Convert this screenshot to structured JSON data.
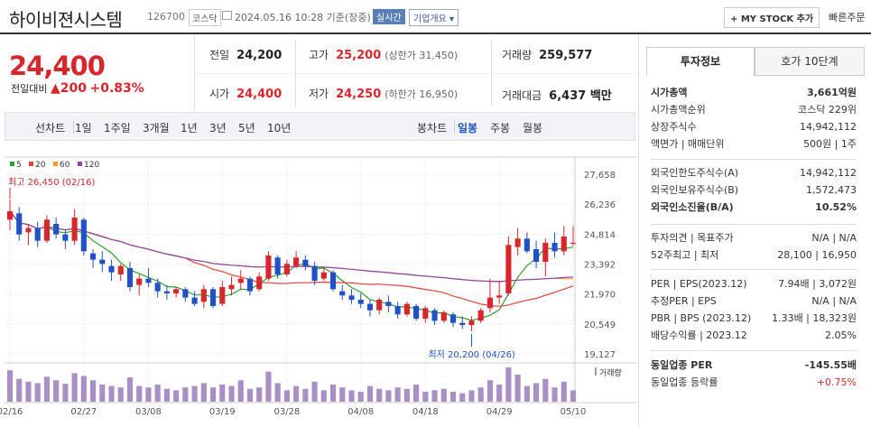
{
  "header": {
    "name": "하이비젼시스템",
    "code": "126700",
    "market": "코스닥",
    "datetime": "2024.05.16 10:28 기준(장중)",
    "live": "실시간",
    "company_info": "기업개요",
    "mystock": "+ MY STOCK 추가",
    "quick_order": "빠른주문"
  },
  "quote": {
    "price": "24,400",
    "change_label": "전일대비",
    "change_value": "▲200",
    "change_pct": "+0.83%",
    "prev_close_label": "전일",
    "prev_close": "24,200",
    "high_label": "고가",
    "high": "25,200",
    "upper_limit": "(상한가 31,450)",
    "volume_label": "거래량",
    "volume": "259,577",
    "open_label": "시가",
    "open": "24,400",
    "low_label": "저가",
    "low": "24,250",
    "lower_limit": "(하한가 16,950)",
    "trade_value_label": "거래대금",
    "trade_value": "6,437 백만"
  },
  "tabs": {
    "line": "선차트",
    "d1": "1일",
    "w1": "1주일",
    "m3": "3개월",
    "y1": "1년",
    "y3": "3년",
    "y5": "5년",
    "y10": "10년",
    "candle": "봉차트",
    "daily": "일봉",
    "weekly": "주봉",
    "monthly": "월봉"
  },
  "chart_data": {
    "type": "candlestick",
    "legend": [
      {
        "name": "5",
        "color": "#2ca02c"
      },
      {
        "name": "20",
        "color": "#e8413a"
      },
      {
        "name": "60",
        "color": "#f29c26"
      },
      {
        "name": "120",
        "color": "#8e44ad"
      }
    ],
    "y_ticks": [
      "27,658",
      "26,236",
      "24,814",
      "23,392",
      "21,970",
      "20,549",
      "19,127"
    ],
    "ylim": [
      19127,
      27658
    ],
    "x_ticks": [
      "02/16",
      "02/27",
      "03/08",
      "03/19",
      "03/28",
      "04/08",
      "04/18",
      "04/29",
      "05/10"
    ],
    "max_label": "최고 26,450 (02/16)",
    "min_label": "최저 20,200 (04/26)",
    "volume_label": "거래량",
    "candles": [
      [
        25500,
        26450,
        25000,
        25900
      ],
      [
        25800,
        26100,
        24500,
        24800
      ],
      [
        24900,
        25300,
        24300,
        25100
      ],
      [
        25100,
        25400,
        24200,
        24500
      ],
      [
        24500,
        25700,
        24400,
        25500
      ],
      [
        25300,
        25600,
        24600,
        24800
      ],
      [
        24800,
        25000,
        24100,
        24500
      ],
      [
        24500,
        26000,
        24300,
        25600
      ],
      [
        25500,
        25600,
        23800,
        24000
      ],
      [
        23900,
        24100,
        23200,
        23600
      ],
      [
        23600,
        24000,
        23000,
        23400
      ],
      [
        23300,
        23600,
        22600,
        23000
      ],
      [
        22900,
        23400,
        22600,
        23300
      ],
      [
        23200,
        23500,
        22100,
        22300
      ],
      [
        22400,
        22900,
        21900,
        22700
      ],
      [
        22700,
        23200,
        22300,
        22500
      ],
      [
        22500,
        22700,
        21800,
        22100
      ],
      [
        22100,
        22400,
        21700,
        22000
      ],
      [
        22000,
        22300,
        21800,
        22200
      ],
      [
        22200,
        22300,
        21600,
        21800
      ],
      [
        21800,
        22100,
        21400,
        21500
      ],
      [
        21600,
        22400,
        21300,
        22200
      ],
      [
        22200,
        22300,
        21300,
        21400
      ],
      [
        21500,
        22600,
        21400,
        22300
      ],
      [
        22200,
        22800,
        21900,
        22400
      ],
      [
        22500,
        23100,
        22200,
        22700
      ],
      [
        22700,
        22800,
        21900,
        22100
      ],
      [
        22200,
        23000,
        22100,
        22800
      ],
      [
        22700,
        24000,
        22600,
        23800
      ],
      [
        23700,
        23800,
        22700,
        22900
      ],
      [
        22900,
        23600,
        22800,
        23400
      ],
      [
        23300,
        24000,
        23200,
        23700
      ],
      [
        23600,
        23800,
        23100,
        23300
      ],
      [
        23300,
        23500,
        22400,
        22600
      ],
      [
        22700,
        23200,
        22600,
        23000
      ],
      [
        23000,
        23100,
        22100,
        22200
      ],
      [
        22100,
        22400,
        21700,
        21900
      ],
      [
        21900,
        22200,
        21500,
        21700
      ],
      [
        21700,
        22000,
        21300,
        21500
      ],
      [
        21500,
        21700,
        20900,
        21200
      ],
      [
        21200,
        21800,
        21000,
        21700
      ],
      [
        21600,
        21900,
        21100,
        21400
      ],
      [
        21400,
        21600,
        20800,
        21000
      ],
      [
        21000,
        21600,
        20900,
        21500
      ],
      [
        21400,
        21500,
        20700,
        20800
      ],
      [
        20800,
        21400,
        20600,
        21300
      ],
      [
        21200,
        21300,
        20500,
        20700
      ],
      [
        20700,
        21200,
        20600,
        21100
      ],
      [
        21000,
        21100,
        20400,
        20600
      ],
      [
        20600,
        20900,
        20300,
        20500
      ],
      [
        20500,
        20900,
        20200,
        20700
      ],
      [
        20700,
        21300,
        20600,
        21200
      ],
      [
        21300,
        22700,
        21100,
        21800
      ],
      [
        21800,
        22600,
        21500,
        21900
      ],
      [
        22000,
        24700,
        21900,
        24300
      ],
      [
        24200,
        25100,
        23800,
        24600
      ],
      [
        24600,
        24900,
        23900,
        24000
      ],
      [
        24100,
        24500,
        23200,
        23500
      ],
      [
        23500,
        24600,
        22800,
        24400
      ],
      [
        24400,
        24900,
        23700,
        24000
      ],
      [
        24000,
        25200,
        23800,
        24700
      ],
      [
        24400,
        25200,
        24250,
        24400
      ]
    ],
    "volumes": [
      44,
      32,
      28,
      26,
      35,
      30,
      25,
      40,
      36,
      30,
      24,
      22,
      20,
      34,
      22,
      20,
      24,
      18,
      16,
      20,
      22,
      26,
      20,
      24,
      22,
      30,
      18,
      20,
      42,
      26,
      16,
      22,
      18,
      28,
      16,
      24,
      20,
      16,
      14,
      22,
      18,
      16,
      20,
      18,
      24,
      14,
      16,
      18,
      14,
      12,
      16,
      20,
      30,
      24,
      48,
      38,
      22,
      26,
      32,
      20,
      28,
      16
    ]
  },
  "panel": {
    "tab_invest": "투자정보",
    "tab_hoga": "호가 10단계",
    "rows1": [
      {
        "label": "시가총액",
        "value": "3,661억원"
      },
      {
        "label": "시가총액순위",
        "value": "코스닥 229위"
      },
      {
        "label": "상장주식수",
        "value": "14,942,112"
      },
      {
        "label": "액면가 | 매매단위",
        "value": "500원 | 1주"
      }
    ],
    "rows2": [
      {
        "label": "외국인한도주식수(A)",
        "value": "14,942,112"
      },
      {
        "label": "외국인보유주식수(B)",
        "value": "1,572,473"
      },
      {
        "label": "외국인소진율(B/A)",
        "value": "10.52%"
      }
    ],
    "rows3": [
      {
        "label": "투자의견 | 목표주가",
        "value": "N/A | N/A"
      },
      {
        "label": "52주최고 | 최저",
        "value": "28,100 | 16,950"
      }
    ],
    "rows4": [
      {
        "label": "PER | EPS(2023.12)",
        "value": "7.94배 | 3,072원"
      },
      {
        "label": "추정PER | EPS",
        "value": "N/A | N/A"
      },
      {
        "label": "PBR | BPS (2023.12)",
        "value": "1.33배 | 18,323원"
      },
      {
        "label": "배당수익률 | 2023.12",
        "value": "2.05%"
      }
    ],
    "rows5": [
      {
        "label": "동일업종 PER",
        "value": "-145.55배"
      },
      {
        "label": "동일업종 등락률",
        "value": "+0.75%"
      }
    ]
  }
}
